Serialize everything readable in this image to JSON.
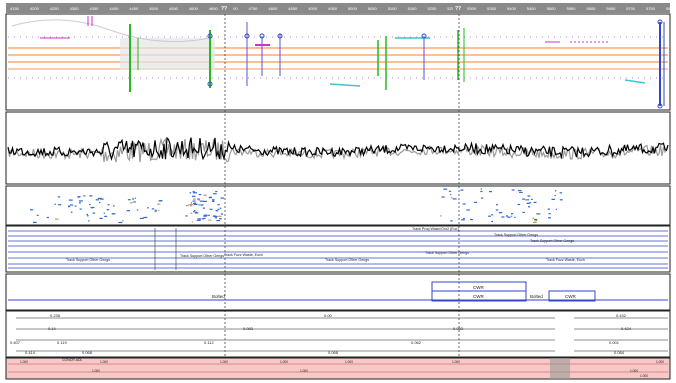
{
  "ruler": {
    "ticks": [
      "4150",
      "4200",
      "4250",
      "4300",
      "4350",
      "4400",
      "4450",
      "4500",
      "4550",
      "4600",
      "4650",
      "4700",
      "4750",
      "4800",
      "4850",
      "4900",
      "4950",
      "5000",
      "5050",
      "5100",
      "5150",
      "5200",
      "5250",
      "5300",
      "5350",
      "5400",
      "5450",
      "5500",
      "5550",
      "5600",
      "5650",
      "5700",
      "5750",
      "5800"
    ],
    "markers": [
      "??",
      "??"
    ]
  },
  "tracks": {
    "description_labels": [
      "Track Prog Wasix/Gro2 (Euc)",
      "Track Support Other Gengs",
      "Track Support Other Gengs",
      "Track Support Other Gengs",
      "Track Support Other Gengs",
      "Track Support Other Gengs",
      "Track Support Other Gengs",
      "Track Fuzz Waste, Euch",
      "Track Fuzz Waste, Euch"
    ],
    "block_labels": {
      "cwr_top": "CWR",
      "cwr_main": "CWR",
      "cwr_right": "CWR",
      "bolted_left": "Bolted",
      "bolted_right": "Bolted"
    },
    "value_rows": [
      [
        "0.238",
        "0.00",
        "0.432"
      ],
      [
        "0.14",
        "0.083",
        "0.083",
        "0.424"
      ],
      [
        "0.407",
        "0.119",
        "0.112",
        "0.062",
        "0.001"
      ],
      [
        "0.414",
        "0.068",
        "0.068",
        "0.084"
      ]
    ],
    "bottom_labels": [
      "CONCR ADL",
      "1.000",
      "1.000",
      "1.000",
      "1.000",
      "1.000",
      "1.000",
      "1.000",
      "1.000",
      "1.000",
      "1.000",
      "1.000"
    ]
  },
  "colors": {
    "ruler": "#8a8a8a",
    "accent_orange": "#f59a5a",
    "accent_green": "#22bb22",
    "accent_blue": "#2233aa",
    "accent_magenta": "#cc33cc",
    "accent_cyan": "#33cccc",
    "signal": "#000000",
    "track_line": "#3344cc",
    "bottom_pink": "#f3b4b4"
  }
}
